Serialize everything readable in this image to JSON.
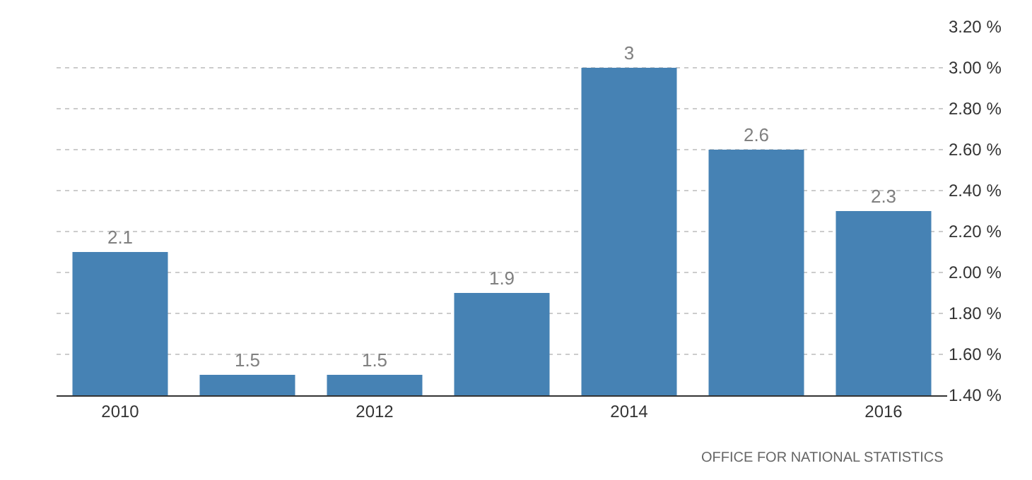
{
  "chart_data": {
    "type": "bar",
    "categories": [
      "2010",
      null,
      "2012",
      null,
      "2014",
      null,
      "2016"
    ],
    "values": [
      2.1,
      1.5,
      1.5,
      1.9,
      3,
      2.6,
      2.3
    ],
    "color": "#4682b4",
    "data_labels": true,
    "ylim": [
      1.4,
      3.2
    ],
    "yticks": [
      {
        "value": 1.4,
        "label": "1.40 %"
      },
      {
        "value": 1.6,
        "label": "1.60 %"
      },
      {
        "value": 1.8,
        "label": "1.80 %"
      },
      {
        "value": 2.0,
        "label": "2.00 %"
      },
      {
        "value": 2.2,
        "label": "2.20 %"
      },
      {
        "value": 2.4,
        "label": "2.40 %"
      },
      {
        "value": 2.6,
        "label": "2.60 %"
      },
      {
        "value": 2.8,
        "label": "2.80 %"
      },
      {
        "value": 3.0,
        "label": "3.00 %"
      },
      {
        "value": 3.2,
        "label": "3.20 %"
      }
    ],
    "grid": "y",
    "legend": false,
    "annotations": [
      "OFFICE FOR NATIONAL STATISTICS"
    ]
  }
}
